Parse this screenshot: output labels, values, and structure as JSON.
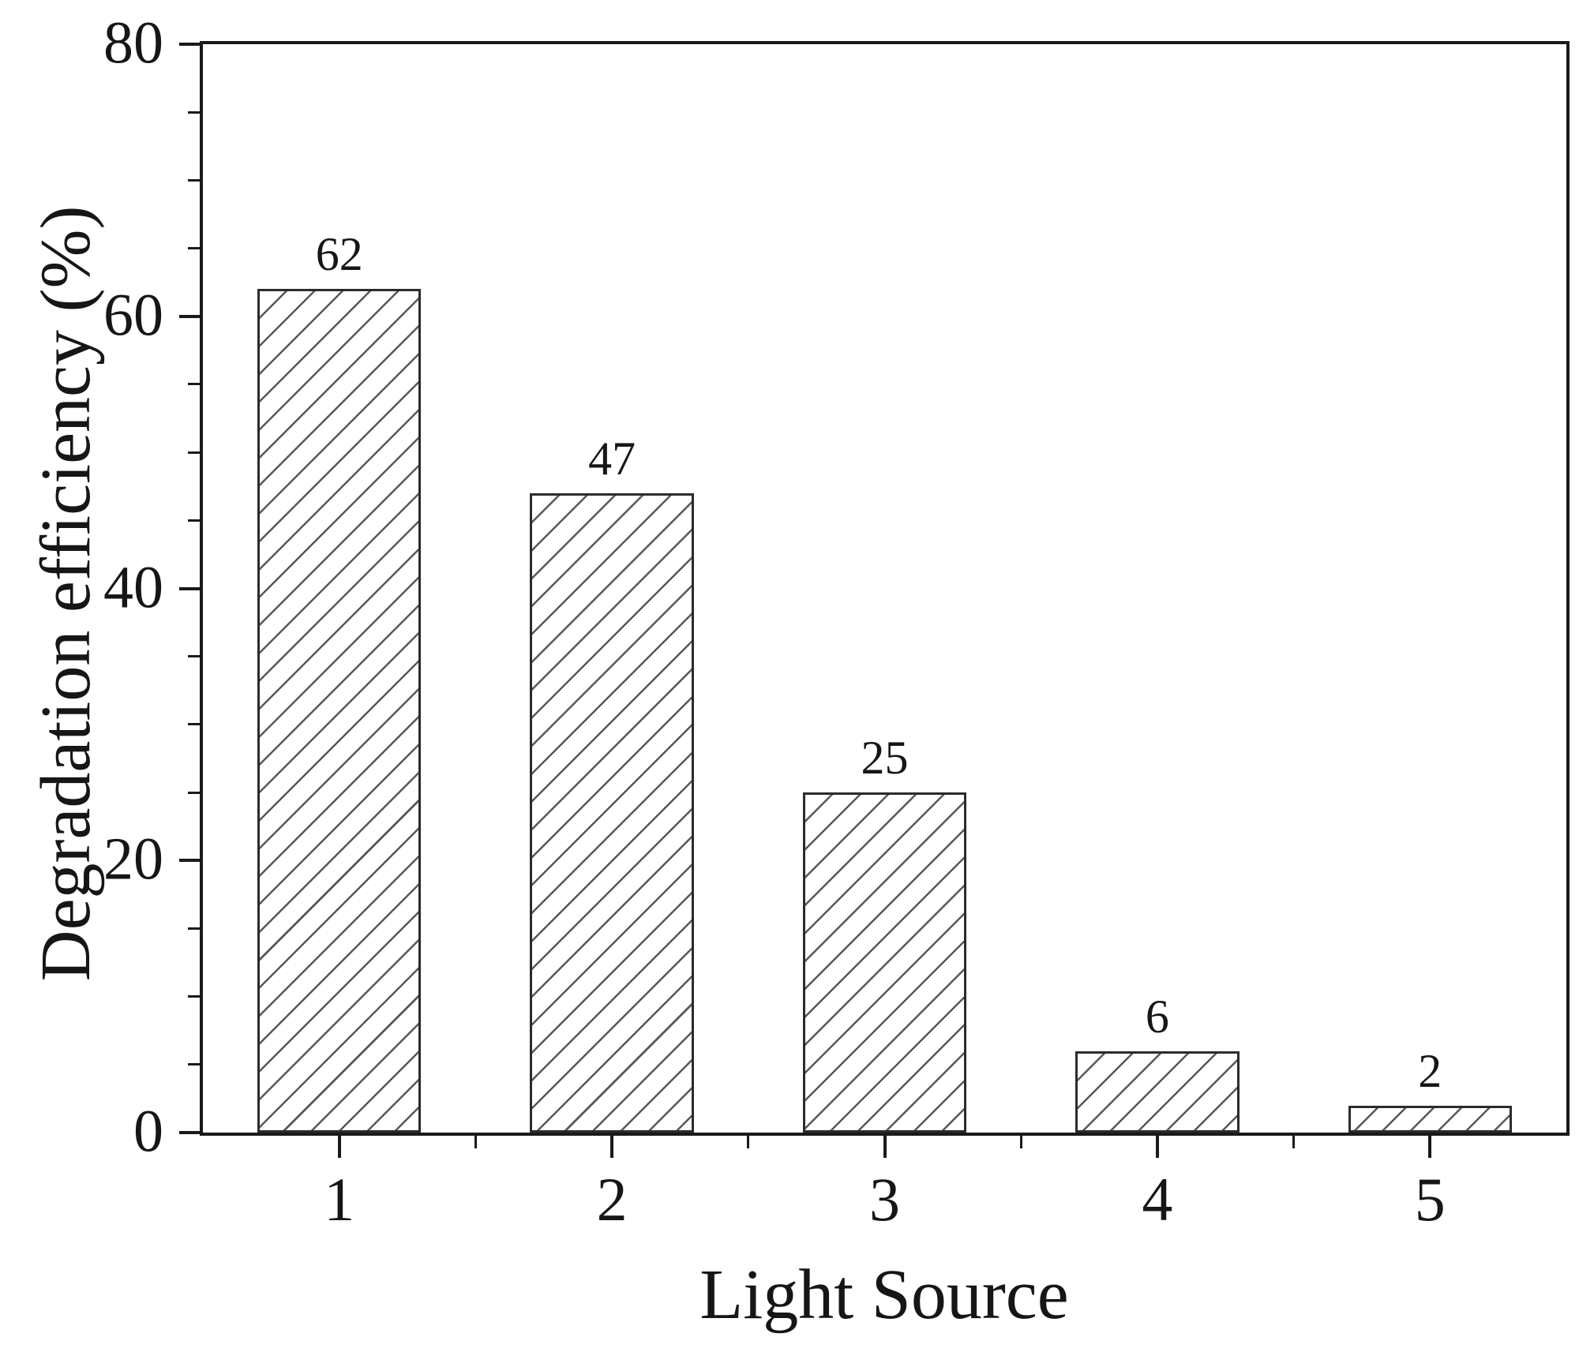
{
  "chart_data": {
    "type": "bar",
    "title": "",
    "xlabel": "Light Source",
    "ylabel": "Degradation efficiency (%)",
    "categories": [
      "1",
      "2",
      "3",
      "4",
      "5"
    ],
    "values": [
      62,
      47,
      25,
      6,
      2
    ],
    "bar_labels": [
      "62",
      "47",
      "25",
      "6",
      "2"
    ],
    "ylim": [
      0,
      80
    ],
    "yticks": [
      0,
      20,
      40,
      60,
      80
    ],
    "ytick_labels": [
      "0",
      "20",
      "40",
      "60",
      "80"
    ],
    "yminor_interval": 5,
    "grid": false,
    "legend": "none",
    "bar_width_fraction": 0.6,
    "hatch": "forward-diagonal",
    "colors": {
      "background": "#ffffff",
      "bar_fill": "#ffffff",
      "bar_edge": "#2b2b2b",
      "hatch_line": "#585858",
      "axis": "#1a1a1a",
      "text": "#161616"
    }
  }
}
